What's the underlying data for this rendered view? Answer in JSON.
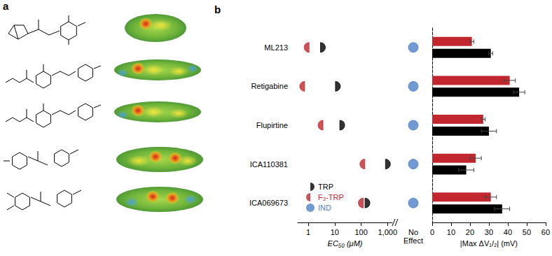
{
  "panel_labels": [
    "a",
    "b"
  ],
  "chart_data": [
    {
      "type": "scatter",
      "categories": [
        "ML213",
        "Retigabine",
        "Flupirtine",
        "ICA110381",
        "ICA069673"
      ],
      "x_label": "EC₅₀ (μM)",
      "log": "x",
      "xlim": [
        0.4,
        1500
      ],
      "xticks": [
        1,
        10,
        100,
        {
          "value": 1000,
          "label": "1,000"
        }
      ],
      "legend": "lower left",
      "series": [
        {
          "name": "TRP",
          "color": "#000000",
          "marker": "right-half-circle",
          "values": [
            2.9,
            10.7,
            15.6,
            830,
            140
          ]
        },
        {
          "name": "F₃-TRP",
          "color": "#c1272d",
          "marker": "left-half-circle",
          "values": [
            1.07,
            0.73,
            3.6,
            137,
            120
          ]
        },
        {
          "name": "IND",
          "color": "#4f81c7",
          "marker": "circle",
          "values": [
            "No Effect",
            "No Effect",
            "No Effect",
            "No Effect",
            "No Effect"
          ]
        }
      ]
    },
    {
      "type": "bar",
      "orientation": "horizontal",
      "categories": [
        "ML213",
        "Retigabine",
        "Flupirtine",
        "ICA110381",
        "ICA069673"
      ],
      "x_label": "|Max ΔV₁/₂| (mV)",
      "xlim": [
        0,
        60
      ],
      "xticks": [
        0,
        10,
        20,
        30,
        40,
        50,
        60
      ],
      "tick_labels": "x",
      "series": [
        {
          "name": "F₃-TRP",
          "color": "#c1272d",
          "values": [
            21,
            41,
            27,
            23,
            31
          ],
          "errors": [
            1,
            3,
            1,
            3,
            3
          ]
        },
        {
          "name": "TRP",
          "color": "#000000",
          "values": [
            31,
            46,
            30,
            18,
            37
          ],
          "errors": [
            1,
            3,
            4,
            4,
            4
          ]
        }
      ]
    }
  ]
}
